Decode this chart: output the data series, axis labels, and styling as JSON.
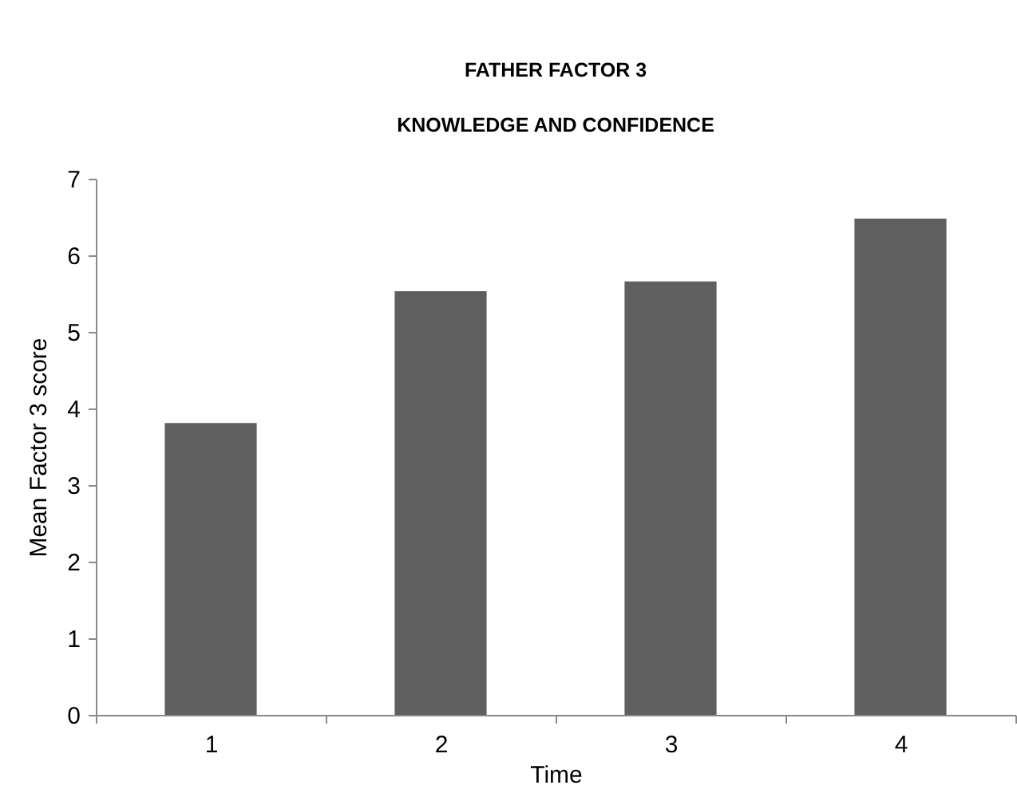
{
  "chart_data": {
    "type": "bar",
    "title": "FATHER FACTOR 3",
    "subtitle": "KNOWLEDGE AND CONFIDENCE",
    "xlabel": "Time",
    "ylabel": "Mean Factor 3 score",
    "categories": [
      "1",
      "2",
      "3",
      "4"
    ],
    "values": [
      3.81,
      5.53,
      5.66,
      6.48
    ],
    "color": "#5f5f5f",
    "ylim": [
      0,
      7
    ],
    "yticks": [
      0,
      1,
      2,
      3,
      4,
      5,
      6,
      7
    ]
  }
}
